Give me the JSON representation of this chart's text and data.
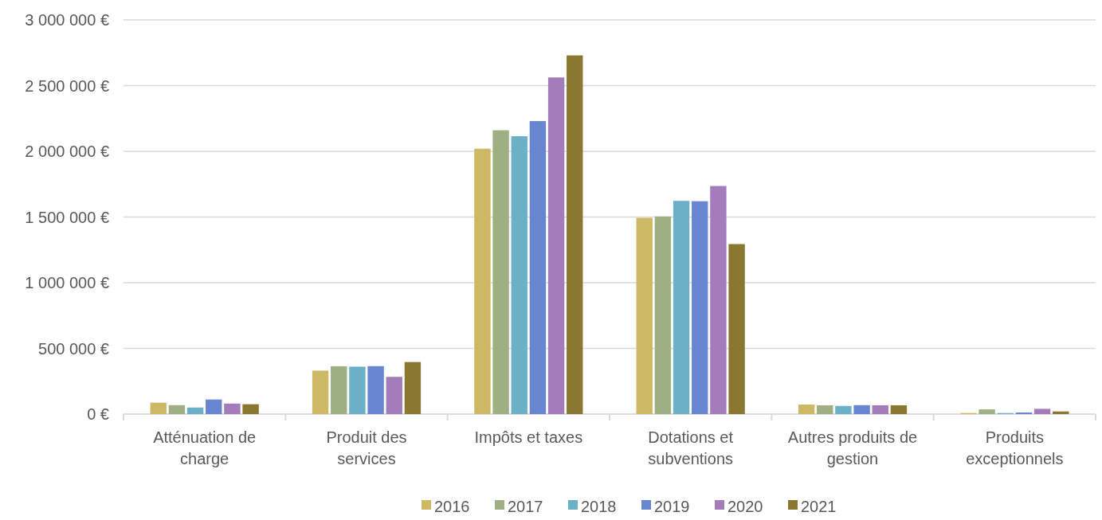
{
  "chart_data": {
    "type": "bar",
    "categories": [
      "Atténuation de charge",
      "Produit des services",
      "Impôts et taxes",
      "Dotations et subventions",
      "Autres produits de gestion",
      "Produits exceptionnels"
    ],
    "series": [
      {
        "name": "2016",
        "color": "#cdb866",
        "values": [
          87000,
          331000,
          2020000,
          1494000,
          73000,
          8000
        ]
      },
      {
        "name": "2017",
        "color": "#9eaf83",
        "values": [
          68000,
          364000,
          2160000,
          1504000,
          67000,
          36000
        ]
      },
      {
        "name": "2018",
        "color": "#6cb0c8",
        "values": [
          50000,
          361000,
          2115000,
          1623000,
          62000,
          8000
        ]
      },
      {
        "name": "2019",
        "color": "#6786cf",
        "values": [
          111000,
          365000,
          2230000,
          1620000,
          68000,
          12000
        ]
      },
      {
        "name": "2020",
        "color": "#a47bbb",
        "values": [
          80000,
          283000,
          2562000,
          1736000,
          67000,
          40000
        ]
      },
      {
        "name": "2021",
        "color": "#8b7830",
        "values": [
          75000,
          396000,
          2730000,
          1294000,
          67000,
          20000
        ]
      }
    ],
    "ylim": [
      0,
      3000000
    ],
    "yticks": [
      {
        "value": 0,
        "label": "0 €"
      },
      {
        "value": 500000,
        "label": "500 000 €"
      },
      {
        "value": 1000000,
        "label": "1 000 000 €"
      },
      {
        "value": 1500000,
        "label": "1 500 000 €"
      },
      {
        "value": 2000000,
        "label": "2 000 000 €"
      },
      {
        "value": 2500000,
        "label": "2 500 000 €"
      },
      {
        "value": 3000000,
        "label": "3 000 000 €"
      }
    ],
    "grid": "y",
    "legend": "bottom"
  }
}
